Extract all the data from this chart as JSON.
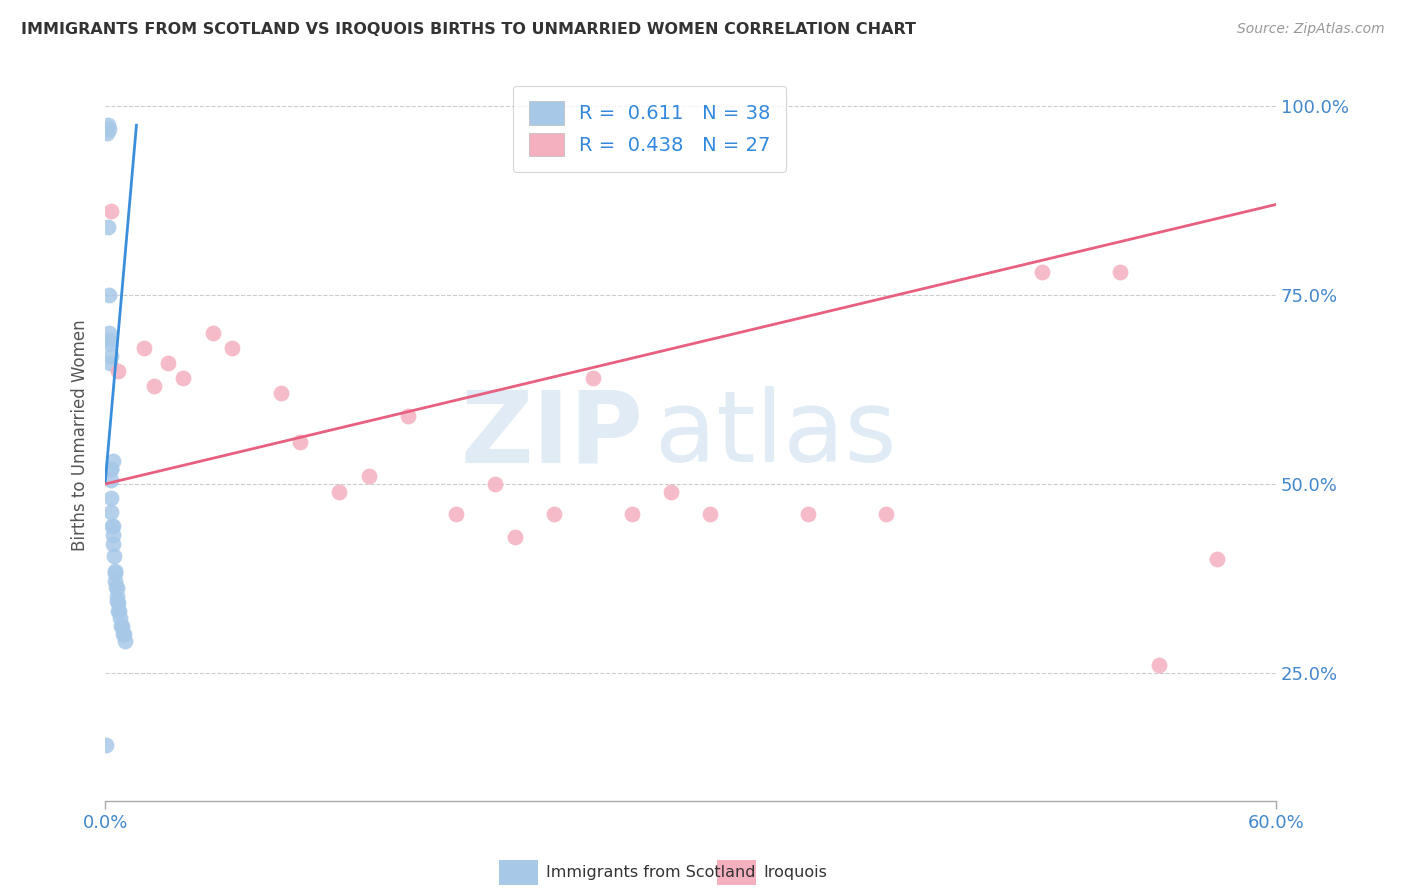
{
  "title": "IMMIGRANTS FROM SCOTLAND VS IROQUOIS BIRTHS TO UNMARRIED WOMEN CORRELATION CHART",
  "source": "Source: ZipAtlas.com",
  "ylabel": "Births to Unmarried Women",
  "ytick_labels": [
    "25.0%",
    "50.0%",
    "75.0%",
    "100.0%"
  ],
  "ytick_values": [
    0.25,
    0.5,
    0.75,
    1.0
  ],
  "xlim": [
    0.0,
    0.6
  ],
  "ylim": [
    0.08,
    1.05
  ],
  "legend1_R": "0.611",
  "legend1_N": "38",
  "legend2_R": "0.438",
  "legend2_N": "27",
  "scotland_color": "#a8c8e8",
  "iroquois_color": "#f5b0c0",
  "trendline1_color": "#3a8fdd",
  "trendline2_color": "#e86080",
  "watermark_zip": "ZIP",
  "watermark_atlas": "atlas",
  "background_color": "#ffffff",
  "scotland_x": [
    0.0005,
    0.001,
    0.0012,
    0.0015,
    0.0018,
    0.002,
    0.002,
    0.0022,
    0.0025,
    0.0025,
    0.0028,
    0.0028,
    0.003,
    0.003,
    0.0032,
    0.0032,
    0.0035,
    0.0038,
    0.004,
    0.004,
    0.0042,
    0.0045,
    0.0048,
    0.005,
    0.0052,
    0.0055,
    0.0058,
    0.006,
    0.0062,
    0.0065,
    0.0068,
    0.007,
    0.0075,
    0.008,
    0.0085,
    0.009,
    0.0095,
    0.01
  ],
  "scotland_y": [
    0.155,
    0.965,
    0.975,
    0.84,
    0.75,
    0.7,
    0.97,
    0.685,
    0.66,
    0.69,
    0.67,
    0.52,
    0.505,
    0.482,
    0.463,
    0.52,
    0.445,
    0.445,
    0.432,
    0.53,
    0.42,
    0.405,
    0.385,
    0.382,
    0.372,
    0.363,
    0.362,
    0.352,
    0.345,
    0.342,
    0.332,
    0.332,
    0.322,
    0.312,
    0.312,
    0.302,
    0.302,
    0.292
  ],
  "iroquois_x": [
    0.0028,
    0.0068,
    0.02,
    0.025,
    0.032,
    0.04,
    0.055,
    0.065,
    0.09,
    0.1,
    0.12,
    0.135,
    0.155,
    0.18,
    0.2,
    0.21,
    0.23,
    0.25,
    0.27,
    0.29,
    0.31,
    0.36,
    0.4,
    0.48,
    0.52,
    0.54,
    0.57
  ],
  "iroquois_y": [
    0.862,
    0.65,
    0.68,
    0.63,
    0.66,
    0.64,
    0.7,
    0.68,
    0.62,
    0.555,
    0.49,
    0.51,
    0.59,
    0.46,
    0.5,
    0.43,
    0.46,
    0.64,
    0.46,
    0.49,
    0.46,
    0.46,
    0.46,
    0.78,
    0.78,
    0.26,
    0.4
  ],
  "trendline1_x": [
    0.0,
    0.016
  ],
  "trendline1_y": [
    0.502,
    0.975
  ],
  "trendline2_x": [
    0.0,
    0.6
  ],
  "trendline2_y": [
    0.5,
    0.87
  ]
}
